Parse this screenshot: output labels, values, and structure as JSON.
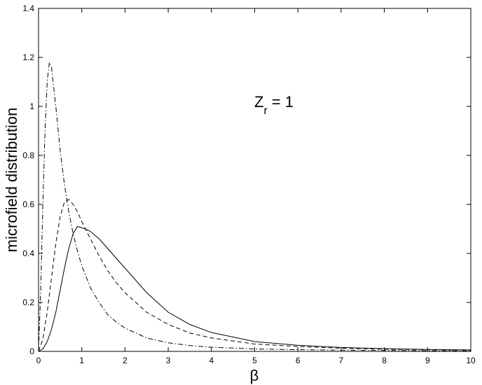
{
  "chart_data": {
    "type": "line",
    "xlabel": "β",
    "ylabel": "microfield distribution",
    "annotation": {
      "base": "Z",
      "subscript": "r",
      "rest": "= 1"
    },
    "xlim": [
      0,
      10
    ],
    "ylim": [
      0,
      1.4
    ],
    "xticks": [
      0,
      1,
      2,
      3,
      4,
      5,
      6,
      7,
      8,
      9,
      10
    ],
    "yticks": [
      0,
      0.2,
      0.4,
      0.6,
      0.8,
      1,
      1.2,
      1.4
    ],
    "series": [
      {
        "color": "#000000",
        "style": "solid",
        "x": [
          0,
          0.1,
          0.2,
          0.3,
          0.4,
          0.5,
          0.6,
          0.7,
          0.8,
          0.9,
          1.0,
          1.2,
          1.4,
          1.6,
          1.8,
          2,
          2.5,
          3,
          3.5,
          4,
          5,
          6,
          7,
          8,
          9,
          10
        ],
        "values": [
          0,
          0.01,
          0.04,
          0.09,
          0.16,
          0.25,
          0.34,
          0.42,
          0.48,
          0.51,
          0.505,
          0.49,
          0.46,
          0.42,
          0.38,
          0.34,
          0.24,
          0.16,
          0.11,
          0.077,
          0.04,
          0.025,
          0.016,
          0.011,
          0.008,
          0.006
        ]
      },
      {
        "color": "#000000",
        "style": "dashed",
        "x": [
          0,
          0.1,
          0.2,
          0.3,
          0.4,
          0.5,
          0.6,
          0.7,
          0.8,
          0.9,
          1.0,
          1.2,
          1.4,
          1.6,
          1.8,
          2,
          2.5,
          3,
          3.5,
          4,
          5,
          6,
          7,
          8,
          9,
          10
        ],
        "values": [
          0,
          0.05,
          0.16,
          0.3,
          0.44,
          0.55,
          0.61,
          0.62,
          0.6,
          0.57,
          0.53,
          0.46,
          0.39,
          0.33,
          0.28,
          0.24,
          0.16,
          0.11,
          0.075,
          0.055,
          0.03,
          0.02,
          0.013,
          0.009,
          0.007,
          0.005
        ]
      },
      {
        "color": "#000000",
        "style": "dashdot",
        "x": [
          0,
          0.05,
          0.1,
          0.15,
          0.2,
          0.25,
          0.3,
          0.4,
          0.5,
          0.6,
          0.7,
          0.8,
          0.9,
          1.0,
          1.2,
          1.4,
          1.6,
          1.8,
          2,
          2.5,
          3,
          3.5,
          4,
          5,
          6,
          7,
          8,
          9,
          10
        ],
        "values": [
          0,
          0.25,
          0.6,
          0.9,
          1.1,
          1.18,
          1.16,
          1.0,
          0.82,
          0.68,
          0.57,
          0.48,
          0.41,
          0.35,
          0.26,
          0.2,
          0.15,
          0.12,
          0.095,
          0.055,
          0.035,
          0.024,
          0.017,
          0.01,
          0.007,
          0.005,
          0.004,
          0.003,
          0.002
        ]
      }
    ]
  }
}
